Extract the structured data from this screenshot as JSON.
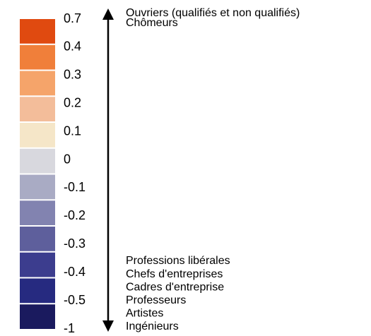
{
  "scale": {
    "labels": [
      "0.7",
      "0.4",
      "0.3",
      "0.2",
      "0.1",
      "0",
      "-0.1",
      "-0.2",
      "-0.3",
      "-0.4",
      "-0.5",
      "-1"
    ],
    "colors": [
      "#e04a10",
      "#f07f3a",
      "#f5a46a",
      "#f3bd9a",
      "#f5e6c8",
      "#d8d8de",
      "#a9abc4",
      "#8283b0",
      "#5e5f9c",
      "#3c3d8e",
      "#262a80",
      "#1a1a5e"
    ]
  },
  "top_items": [
    "Ouvriers (qualifiés et non qualifiés)",
    "Chômeurs"
  ],
  "bottom_items": [
    "Professions libérales",
    "Chefs d'entreprises",
    "Cadres d'entreprise",
    "Professeurs",
    "Artistes",
    "Ingénieurs"
  ]
}
